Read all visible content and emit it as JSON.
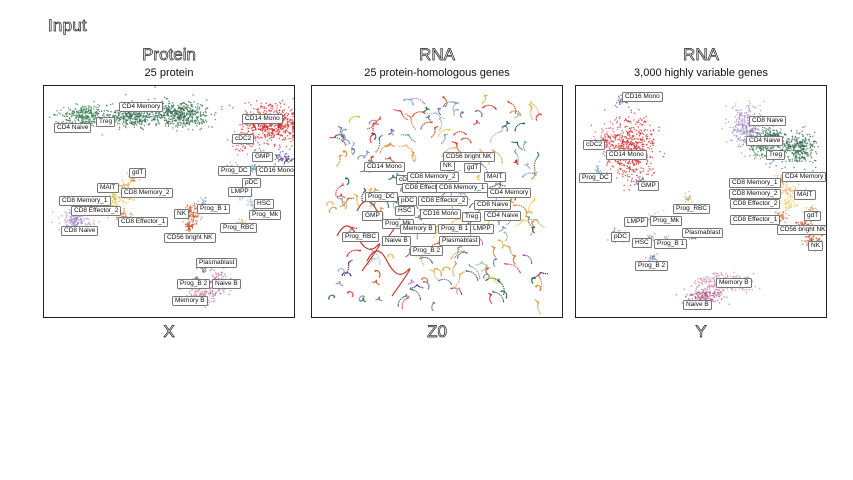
{
  "header": {
    "input_label": "Input"
  },
  "chart_data": [
    {
      "type": "scatter",
      "title": "Protein",
      "subtitle": "25 protein",
      "xlabel": "X",
      "clusters": [
        {
          "name": "CD4 Memory",
          "color": "#2e6b4b"
        },
        {
          "name": "Treg",
          "color": "#2e6b4b"
        },
        {
          "name": "CD4 Naive",
          "color": "#3f7f5a"
        },
        {
          "name": "CD14 Mono",
          "color": "#d62728"
        },
        {
          "name": "cDC2",
          "color": "#e04a4f"
        },
        {
          "name": "GMP",
          "color": "#8a6fb0"
        },
        {
          "name": "pDC",
          "color": "#6b8fa8"
        },
        {
          "name": "CD16 Mono",
          "color": "#5a3f8a"
        },
        {
          "name": "Prog_DC",
          "color": "#7fa3c4"
        },
        {
          "name": "LMPP",
          "color": "#9fb8cc"
        },
        {
          "name": "HSC",
          "color": "#9db6c9"
        },
        {
          "name": "Prog_Mk",
          "color": "#9fc0a5"
        },
        {
          "name": "Prog_RBC",
          "color": "#c2a25f"
        },
        {
          "name": "gdT",
          "color": "#d89a45"
        },
        {
          "name": "MAIT",
          "color": "#e8a24b"
        },
        {
          "name": "CD8 Memory_2",
          "color": "#e9b86a"
        },
        {
          "name": "CD8 Memory_1",
          "color": "#d7b53c"
        },
        {
          "name": "CD8 Effector_2",
          "color": "#f0c84c"
        },
        {
          "name": "CD8 Effector_1",
          "color": "#e27a3f"
        },
        {
          "name": "CD8 Naive",
          "color": "#a889c8"
        },
        {
          "name": "NK",
          "color": "#d05a2c"
        },
        {
          "name": "Prog_B 1",
          "color": "#7fa0b8"
        },
        {
          "name": "CD56 bright NK",
          "color": "#c8512f"
        },
        {
          "name": "Plasmablast",
          "color": "#556b8a"
        },
        {
          "name": "Prog_B 2",
          "color": "#6b86a8"
        },
        {
          "name": "Naive B",
          "color": "#b15c8a"
        },
        {
          "name": "Memory B",
          "color": "#c87aa0"
        }
      ]
    },
    {
      "type": "scatter",
      "title": "RNA",
      "subtitle": "25 protein-homologous genes",
      "xlabel": "Z0",
      "clusters": [
        {
          "name": "CD56 bright NK",
          "color": "#c8512f"
        },
        {
          "name": "NK",
          "color": "#d05a2c"
        },
        {
          "name": "gdT",
          "color": "#d89a45"
        },
        {
          "name": "CD14 Mono",
          "color": "#d62728"
        },
        {
          "name": "cDC2",
          "color": "#e04a4f"
        },
        {
          "name": "CD8 Memory_2",
          "color": "#e9b86a"
        },
        {
          "name": "MAIT",
          "color": "#e8a24b"
        },
        {
          "name": "CD8 Effector_1",
          "color": "#e27a3f"
        },
        {
          "name": "CD8 Memory_1",
          "color": "#d7b53c"
        },
        {
          "name": "CD4 Memory",
          "color": "#2e6b4b"
        },
        {
          "name": "Prog_DC",
          "color": "#7fa3c4"
        },
        {
          "name": "pDC",
          "color": "#6b8fa8"
        },
        {
          "name": "CD8 Effector_2",
          "color": "#f0c84c"
        },
        {
          "name": "CD8 Naive",
          "color": "#a889c8"
        },
        {
          "name": "GMP",
          "color": "#8a6fb0"
        },
        {
          "name": "HSC",
          "color": "#9db6c9"
        },
        {
          "name": "CD16 Mono",
          "color": "#5a3f8a"
        },
        {
          "name": "Treg",
          "color": "#2e6b4b"
        },
        {
          "name": "CD4 Naive",
          "color": "#3f7f5a"
        },
        {
          "name": "Prog_Mk",
          "color": "#9fc0a5"
        },
        {
          "name": "Memory B",
          "color": "#c87aa0"
        },
        {
          "name": "Prog_B 1",
          "color": "#7fa0b8"
        },
        {
          "name": "LMPP",
          "color": "#9fb8cc"
        },
        {
          "name": "Prog_RBC",
          "color": "#c2a25f"
        },
        {
          "name": "Naive B",
          "color": "#b15c8a"
        },
        {
          "name": "Plasmablast",
          "color": "#556b8a"
        },
        {
          "name": "Prog_B 2",
          "color": "#6b86a8"
        }
      ]
    },
    {
      "type": "scatter",
      "title": "RNA",
      "subtitle": "3,000 highly variable genes",
      "xlabel": "Y",
      "clusters": [
        {
          "name": "CD16 Mono",
          "color": "#5a3f8a"
        },
        {
          "name": "cDC2",
          "color": "#e04a4f"
        },
        {
          "name": "CD14 Mono",
          "color": "#d62728"
        },
        {
          "name": "Prog_DC",
          "color": "#7fa3c4"
        },
        {
          "name": "GMP",
          "color": "#8a6fb0"
        },
        {
          "name": "CD8 Naive",
          "color": "#a889c8"
        },
        {
          "name": "CD4 Naive",
          "color": "#3f7f5a"
        },
        {
          "name": "Treg",
          "color": "#2e6b4b"
        },
        {
          "name": "CD4 Memory",
          "color": "#2e6b4b"
        },
        {
          "name": "CD8 Memory_1",
          "color": "#d7b53c"
        },
        {
          "name": "CD8 Memory_2",
          "color": "#e9b86a"
        },
        {
          "name": "MAIT",
          "color": "#e8a24b"
        },
        {
          "name": "CD8 Effector_2",
          "color": "#f0c84c"
        },
        {
          "name": "gdT",
          "color": "#d89a45"
        },
        {
          "name": "CD8 Effector_1",
          "color": "#e27a3f"
        },
        {
          "name": "CD56 bright NK",
          "color": "#c8512f"
        },
        {
          "name": "NK",
          "color": "#d05a2c"
        },
        {
          "name": "Prog_RBC",
          "color": "#c2a25f"
        },
        {
          "name": "LMPP",
          "color": "#9fb8cc"
        },
        {
          "name": "Prog_Mk",
          "color": "#9fc0a5"
        },
        {
          "name": "Plasmablast",
          "color": "#556b8a"
        },
        {
          "name": "pDC",
          "color": "#6b8fa8"
        },
        {
          "name": "HSC",
          "color": "#9db6c9"
        },
        {
          "name": "Prog_B 1",
          "color": "#7fa0b8"
        },
        {
          "name": "Prog_B 2",
          "color": "#6b86a8"
        },
        {
          "name": "Memory B",
          "color": "#c87aa0"
        },
        {
          "name": "Naive B",
          "color": "#b15c8a"
        }
      ]
    }
  ]
}
